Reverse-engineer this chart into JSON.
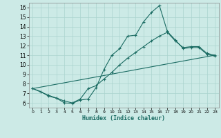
{
  "xlabel": "Humidex (Indice chaleur)",
  "bg_color": "#cceae6",
  "line_color": "#1a6b62",
  "grid_color": "#aad4ce",
  "xlim": [
    -0.5,
    23.5
  ],
  "ylim": [
    5.5,
    16.5
  ],
  "xticks": [
    0,
    1,
    2,
    3,
    4,
    5,
    6,
    7,
    8,
    9,
    10,
    11,
    12,
    13,
    14,
    15,
    16,
    17,
    18,
    19,
    20,
    21,
    22,
    23
  ],
  "yticks": [
    6,
    7,
    8,
    9,
    10,
    11,
    12,
    13,
    14,
    15,
    16
  ],
  "line1_x": [
    0,
    1,
    2,
    3,
    4,
    5,
    6,
    7,
    8,
    9,
    10,
    11,
    12,
    13,
    14,
    15,
    16,
    17,
    18,
    19,
    20,
    21,
    22,
    23
  ],
  "line1_y": [
    7.5,
    7.2,
    6.7,
    6.5,
    6.0,
    5.95,
    6.3,
    6.4,
    7.6,
    9.5,
    11.0,
    11.7,
    13.0,
    13.1,
    14.5,
    15.5,
    16.2,
    13.5,
    12.6,
    11.7,
    11.8,
    11.8,
    11.1,
    10.9
  ],
  "line2_x": [
    0,
    2,
    3,
    4,
    5,
    6,
    7,
    8,
    9,
    10,
    11,
    12,
    13,
    14,
    15,
    16,
    17,
    18,
    19,
    20,
    21,
    22,
    23
  ],
  "line2_y": [
    7.5,
    6.8,
    6.5,
    6.2,
    6.0,
    6.4,
    7.5,
    7.8,
    8.5,
    9.2,
    10.0,
    10.7,
    11.3,
    11.9,
    12.5,
    13.0,
    13.4,
    12.5,
    11.8,
    11.9,
    11.9,
    11.2,
    11.0
  ],
  "line3_x": [
    0,
    23
  ],
  "line3_y": [
    7.5,
    11.0
  ]
}
